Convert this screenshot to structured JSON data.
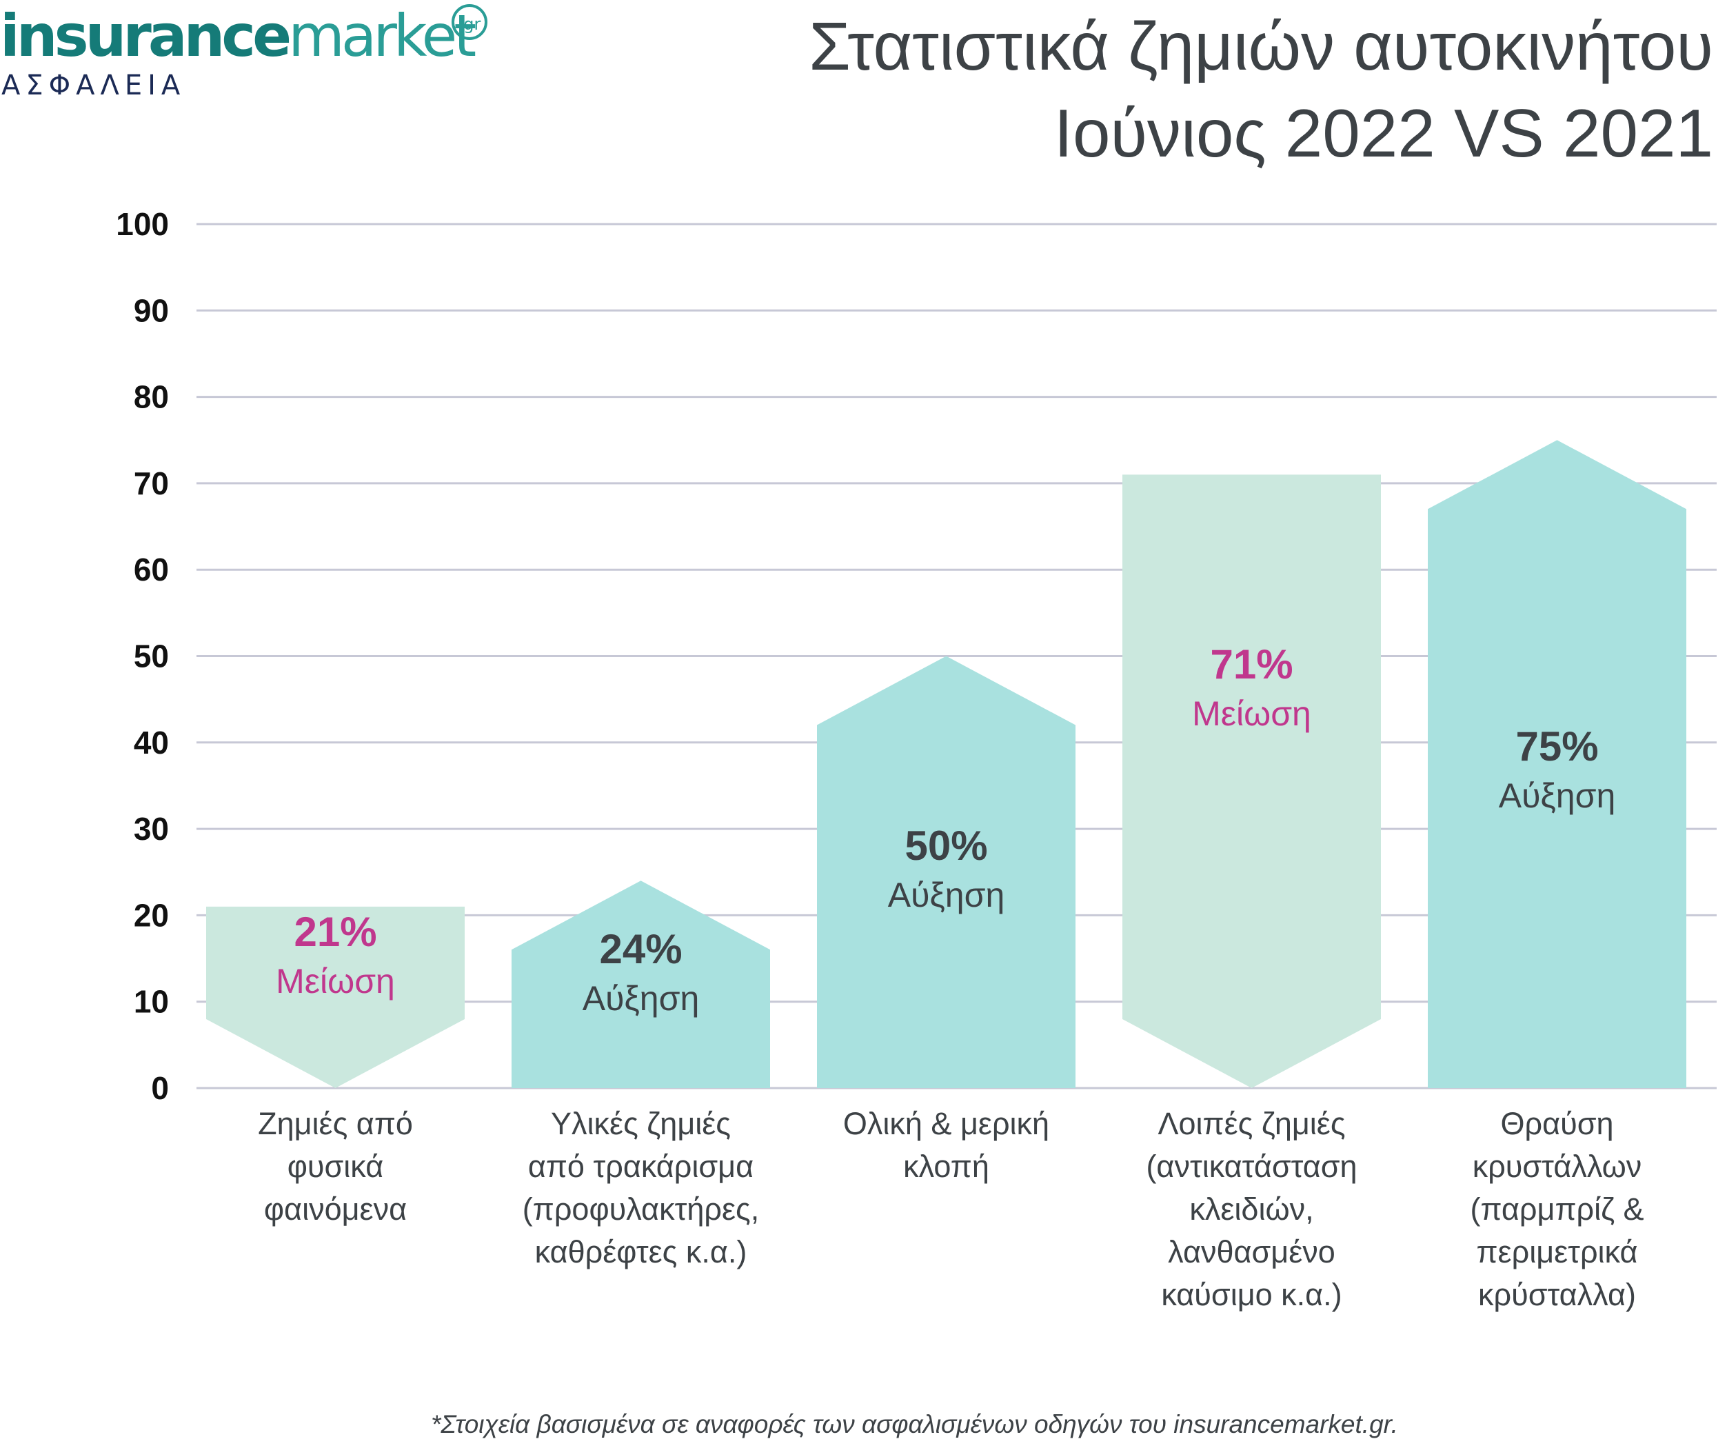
{
  "brand": {
    "name_bold": "insurance",
    "name_light": "market",
    "badge": ".gr",
    "subtitle": "ΑΣΦΑΛΕΙΑ"
  },
  "title": {
    "line1": "Στατιστικά ζημιών αυτοκινήτου",
    "line2": "Ιούνιος 2022 VS 2021"
  },
  "footnote": "*Στοιχεία βασισμένα σε αναφορές των ασφαλισμένων οδηγών του insurancemarket.gr.",
  "chart_data": {
    "type": "bar",
    "ylim": [
      0,
      100
    ],
    "yticks": [
      "0",
      "10",
      "20",
      "30",
      "40",
      "50",
      "60",
      "70",
      "80",
      "90",
      "100"
    ],
    "grid": true,
    "categories": [
      [
        "Ζημιές από",
        "φυσικά",
        "φαινόμενα"
      ],
      [
        "Υλικές ζημιές",
        "από τρακάρισμα",
        "(προφυλακτήρες,",
        "καθρέφτες κ.α.)"
      ],
      [
        "Ολική & μερική",
        "κλοπή"
      ],
      [
        "Λοιπές ζημιές",
        "(αντικατάσταση",
        "κλειδιών,",
        "λανθασμένο",
        "καύσιμο κ.α.)"
      ],
      [
        "Θραύση",
        "κρυστάλλων",
        "(παρμπρίζ &",
        "περιμετρικά",
        "κρύσταλλα)"
      ]
    ],
    "values": [
      21,
      24,
      50,
      71,
      75
    ],
    "directions": [
      "decrease",
      "increase",
      "increase",
      "decrease",
      "increase"
    ],
    "value_labels": [
      "21%",
      "24%",
      "50%",
      "71%",
      "75%"
    ],
    "change_labels": [
      "Μείωση",
      "Αύξηση",
      "Αύξηση",
      "Μείωση",
      "Αύξηση"
    ],
    "colors": {
      "increase": "#a9e1df",
      "decrease": "#cbe8de",
      "increase_text": "#3d4246",
      "decrease_text": "#c0378d",
      "grid": "#c7c8d6",
      "axis_text": "#111111",
      "category_text": "#3d4246"
    }
  }
}
